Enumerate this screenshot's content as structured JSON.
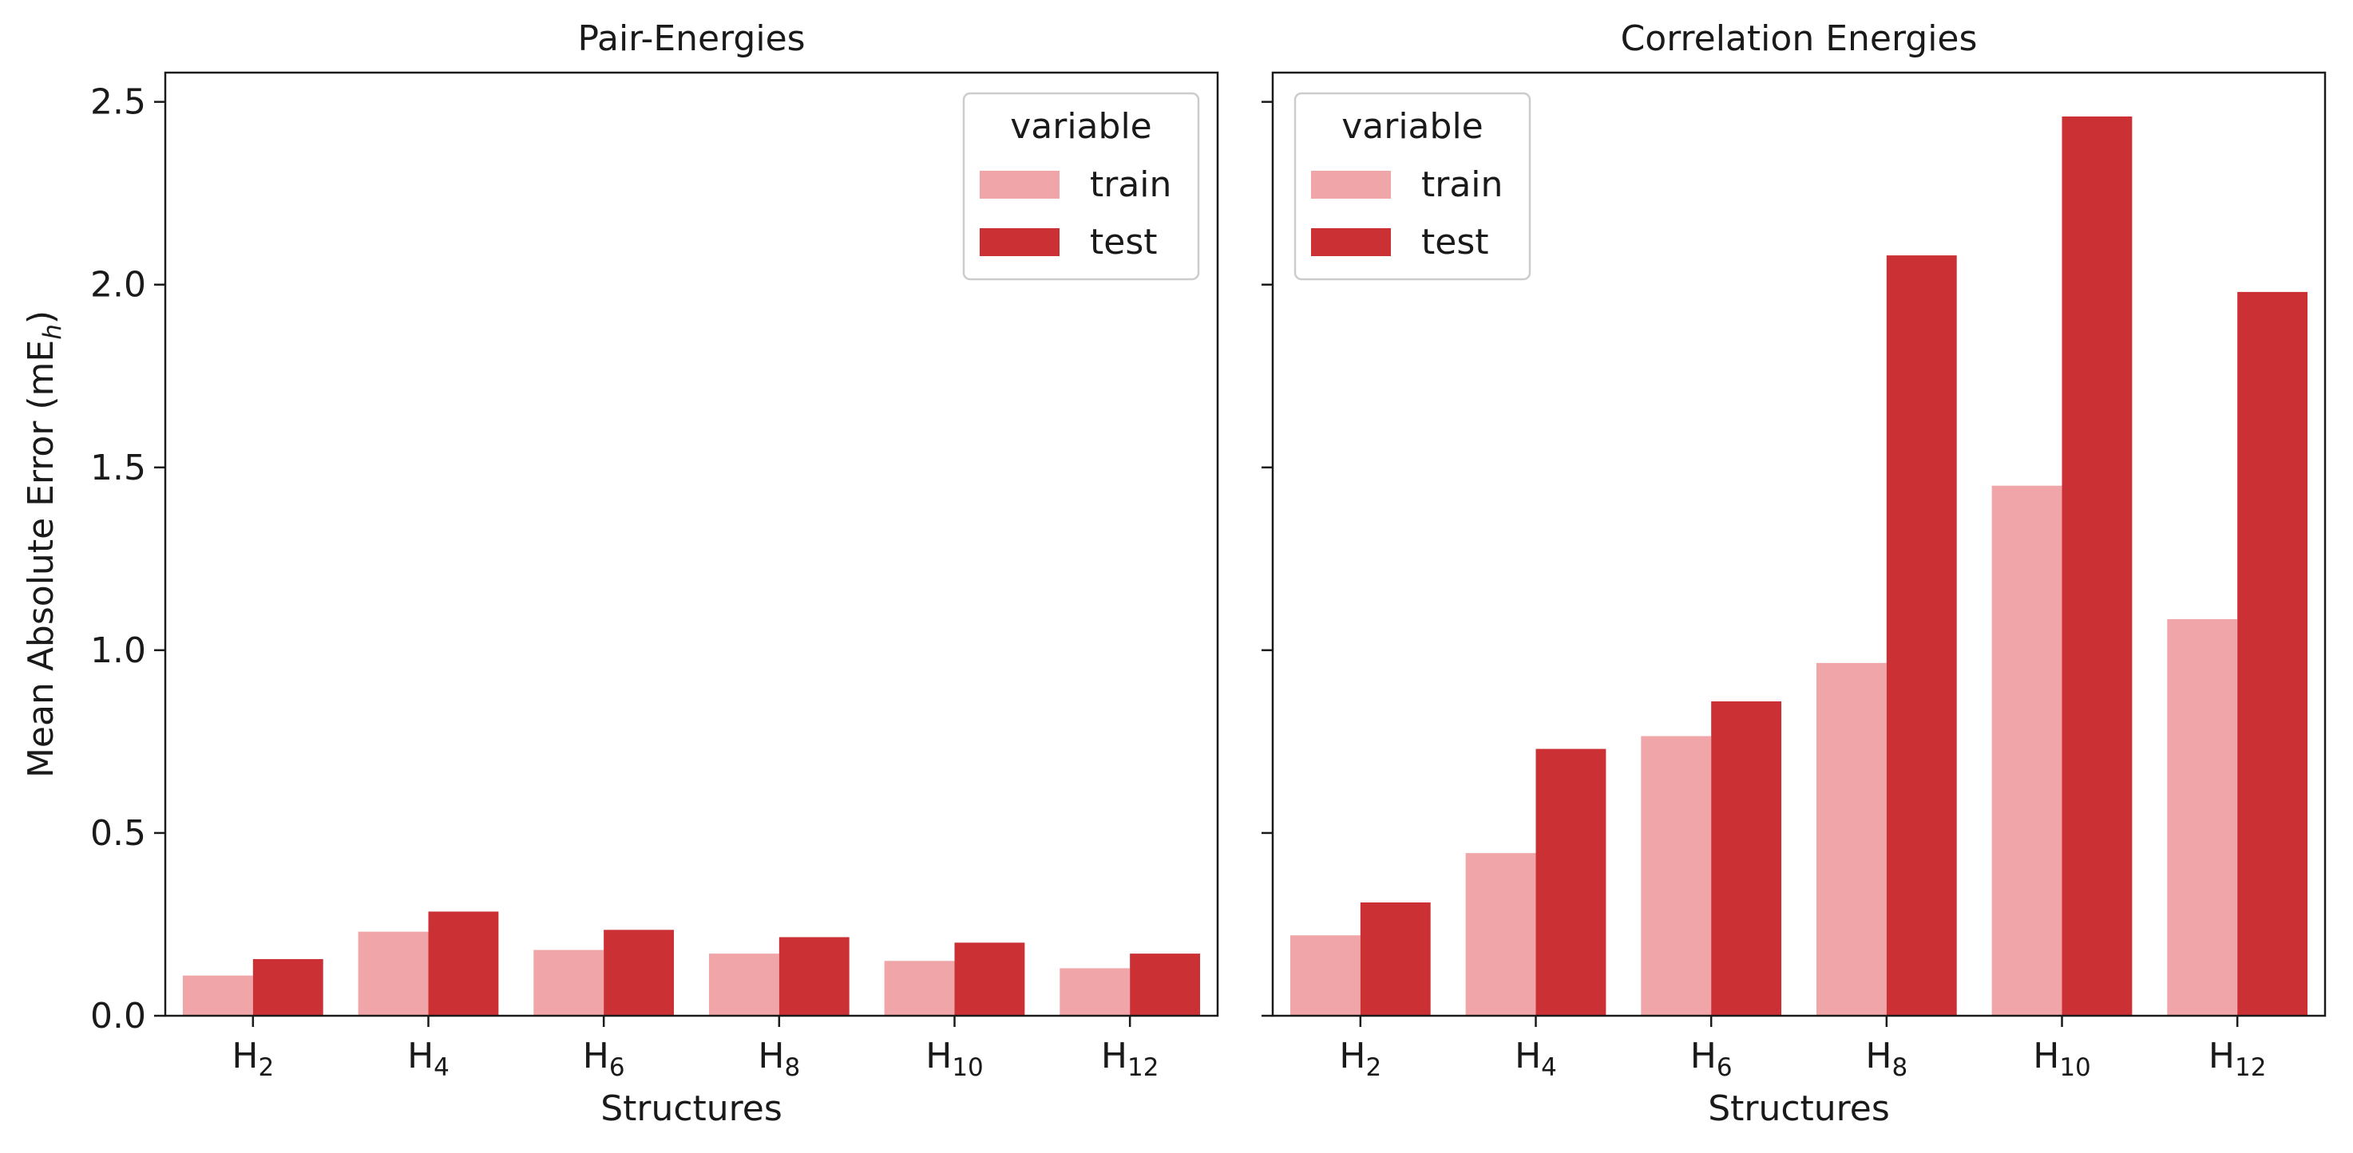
{
  "figure": {
    "ylabel": "Mean Absolute Error (mE",
    "ylabel_sub": "h",
    "ylabel_close": ")",
    "legend_title": "variable",
    "colors": {
      "train": "#f0a6a8",
      "test": "#cb3035"
    },
    "yticks": [
      "0.0",
      "0.5",
      "1.0",
      "1.5",
      "2.0",
      "2.5"
    ]
  },
  "chart_data": [
    {
      "type": "bar",
      "title": "Pair-Energies",
      "xlabel": "Structures",
      "ylabel": "Mean Absolute Error (mEh)",
      "categories": [
        "H2",
        "H4",
        "H6",
        "H8",
        "H10",
        "H12"
      ],
      "category_base": [
        "H",
        "H",
        "H",
        "H",
        "H",
        "H"
      ],
      "category_sub": [
        "2",
        "4",
        "6",
        "8",
        "10",
        "12"
      ],
      "ylim": [
        0,
        2.58
      ],
      "legend": {
        "title": "variable",
        "position": "upper right"
      },
      "series": [
        {
          "name": "train",
          "values": [
            0.11,
            0.23,
            0.18,
            0.17,
            0.15,
            0.13
          ]
        },
        {
          "name": "test",
          "values": [
            0.155,
            0.285,
            0.235,
            0.215,
            0.2,
            0.17
          ]
        }
      ]
    },
    {
      "type": "bar",
      "title": "Correlation Energies",
      "xlabel": "Structures",
      "ylabel": "Mean Absolute Error (mEh)",
      "categories": [
        "H2",
        "H4",
        "H6",
        "H8",
        "H10",
        "H12"
      ],
      "category_base": [
        "H",
        "H",
        "H",
        "H",
        "H",
        "H"
      ],
      "category_sub": [
        "2",
        "4",
        "6",
        "8",
        "10",
        "12"
      ],
      "ylim": [
        0,
        2.58
      ],
      "legend": {
        "title": "variable",
        "position": "upper left"
      },
      "series": [
        {
          "name": "train",
          "values": [
            0.22,
            0.445,
            0.765,
            0.965,
            1.45,
            1.085
          ]
        },
        {
          "name": "test",
          "values": [
            0.31,
            0.73,
            0.86,
            2.08,
            2.46,
            1.98
          ]
        }
      ]
    }
  ]
}
